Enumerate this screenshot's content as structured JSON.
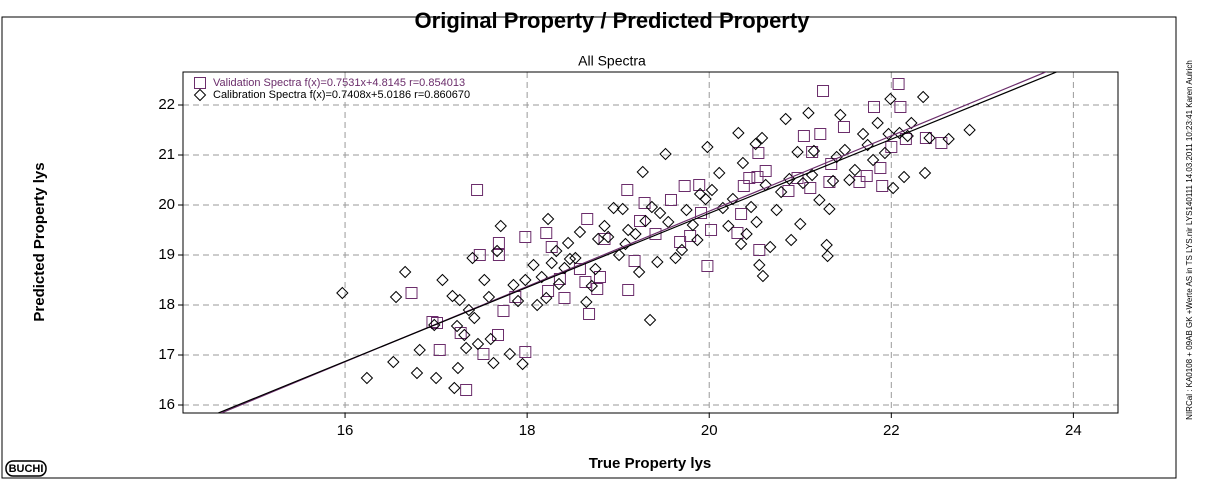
{
  "chart_data": {
    "type": "scatter",
    "title": "Original Property / Predicted Property",
    "subtitle": "All Spectra",
    "x_label": "True Property lys",
    "y_label": "Predicted Property lys",
    "side_note": "NIRCal : KA0108 + 09AB GK +Werte AS in TS LYS.nir LYS140111 14.03.2011 10:23:41 Karen Aulrich",
    "logo": "BUCHI",
    "xlim": [
      14.22,
      24.49
    ],
    "ylim": [
      15.84,
      22.66
    ],
    "xticks": [
      16,
      18,
      20,
      22,
      24
    ],
    "yticks": [
      16,
      17,
      18,
      19,
      20,
      21,
      22
    ],
    "grid": true,
    "legend": "upper-left",
    "series": [
      {
        "name": "Validation Spectra f(x)=0.7531x+4.8145  r=0.854013",
        "color": "#6b2d6b",
        "marker": "square",
        "fit": {
          "slope": 0.7531,
          "intercept": 4.8145
        },
        "x": [
          17.45,
          17.69,
          17.69,
          17.98,
          16.73,
          17.01,
          16.96,
          17.04,
          17.33,
          17.27,
          17.52,
          17.68,
          17.74,
          17.87,
          17.98,
          18.23,
          18.27,
          18.41,
          18.58,
          18.77,
          18.36,
          18.64,
          18.68,
          18.8,
          18.85,
          19.1,
          19.11,
          19.18,
          19.24,
          19.29,
          19.41,
          19.58,
          19.68,
          19.73,
          19.79,
          19.89,
          19.91,
          19.98,
          20.02,
          20.31,
          20.35,
          20.38,
          20.44,
          20.53,
          20.54,
          20.55,
          20.62,
          20.87,
          20.97,
          21.04,
          21.13,
          21.22,
          21.25,
          21.11,
          21.32,
          21.34,
          21.48,
          21.65,
          21.73,
          21.81,
          21.9,
          21.88,
          22.0,
          22.1,
          22.08,
          22.16,
          22.38,
          22.55,
          17.48,
          18.21,
          18.66
        ],
        "values": [
          20.3,
          19.24,
          19.0,
          19.36,
          18.24,
          17.64,
          17.66,
          17.1,
          16.3,
          17.44,
          17.02,
          17.4,
          17.88,
          18.16,
          17.06,
          18.28,
          19.16,
          18.14,
          18.72,
          18.32,
          18.52,
          18.46,
          17.82,
          18.56,
          19.32,
          20.3,
          18.3,
          18.88,
          19.68,
          20.04,
          19.42,
          20.1,
          19.26,
          20.38,
          19.38,
          20.4,
          19.84,
          18.78,
          19.5,
          19.44,
          19.82,
          20.38,
          20.54,
          20.56,
          21.04,
          19.1,
          20.68,
          20.28,
          20.54,
          21.38,
          21.06,
          21.42,
          22.28,
          20.34,
          20.46,
          20.82,
          21.56,
          20.46,
          20.58,
          21.96,
          20.38,
          20.74,
          21.16,
          21.96,
          22.42,
          21.32,
          21.34,
          21.24,
          19.0,
          19.44,
          19.72
        ]
      },
      {
        "name": "Calibration Spectra f(x)=0.7408x+5.0186  r=0.860670",
        "color": "#000000",
        "marker": "diamond",
        "fit": {
          "slope": 0.7408,
          "intercept": 5.0186
        },
        "x": [
          15.97,
          16.24,
          16.53,
          16.56,
          16.66,
          16.79,
          16.82,
          17.0,
          17.07,
          16.98,
          17.18,
          17.23,
          17.24,
          17.2,
          17.26,
          17.31,
          17.33,
          17.36,
          17.4,
          17.42,
          17.46,
          17.53,
          17.58,
          17.6,
          17.63,
          17.67,
          17.71,
          17.81,
          17.85,
          17.9,
          17.95,
          17.98,
          18.07,
          18.11,
          18.16,
          18.21,
          18.23,
          18.27,
          18.32,
          18.35,
          18.41,
          18.45,
          18.47,
          18.53,
          18.58,
          18.65,
          18.71,
          18.75,
          18.78,
          18.85,
          18.89,
          18.95,
          19.01,
          19.05,
          19.08,
          19.11,
          19.19,
          19.23,
          19.27,
          19.3,
          19.35,
          19.37,
          19.43,
          19.46,
          19.52,
          19.55,
          19.63,
          19.7,
          19.75,
          19.82,
          19.87,
          19.9,
          19.96,
          19.98,
          20.03,
          20.11,
          20.15,
          20.21,
          20.26,
          20.32,
          20.35,
          20.37,
          20.41,
          20.46,
          20.51,
          20.52,
          20.55,
          20.58,
          20.59,
          20.62,
          20.67,
          20.74,
          20.79,
          20.84,
          20.88,
          20.9,
          20.97,
          21.0,
          21.03,
          21.09,
          21.13,
          21.15,
          21.21,
          21.29,
          21.3,
          21.32,
          21.36,
          21.4,
          21.44,
          21.49,
          21.54,
          21.6,
          21.69,
          21.74,
          21.8,
          21.85,
          21.93,
          21.97,
          21.99,
          22.02,
          22.09,
          22.14,
          22.18,
          22.22,
          22.35,
          22.37,
          22.42,
          22.86,
          22.63
        ],
        "values": [
          18.24,
          16.54,
          16.86,
          18.16,
          18.66,
          16.64,
          17.1,
          16.54,
          18.5,
          17.6,
          18.18,
          17.58,
          16.74,
          16.34,
          18.1,
          17.4,
          17.14,
          17.9,
          18.94,
          17.74,
          17.22,
          18.5,
          18.16,
          17.32,
          16.84,
          19.08,
          19.58,
          17.02,
          18.4,
          18.08,
          16.82,
          18.5,
          18.8,
          18.0,
          18.56,
          18.14,
          19.72,
          18.84,
          19.08,
          18.42,
          18.74,
          19.24,
          18.92,
          18.94,
          19.46,
          18.06,
          18.38,
          18.72,
          19.32,
          19.58,
          19.36,
          19.94,
          19.0,
          19.92,
          19.22,
          19.5,
          19.42,
          18.66,
          20.66,
          19.68,
          17.7,
          19.96,
          18.86,
          19.84,
          21.02,
          19.66,
          18.94,
          19.1,
          19.9,
          19.6,
          19.3,
          20.22,
          20.12,
          21.16,
          20.3,
          20.64,
          19.94,
          19.58,
          20.12,
          21.44,
          19.22,
          20.84,
          19.42,
          19.96,
          21.22,
          19.66,
          18.8,
          21.34,
          18.58,
          20.4,
          19.16,
          19.9,
          20.26,
          21.72,
          20.52,
          19.3,
          21.06,
          19.62,
          20.44,
          21.84,
          20.6,
          21.08,
          20.1,
          19.2,
          18.98,
          19.92,
          20.48,
          20.96,
          21.8,
          21.1,
          20.5,
          20.7,
          21.42,
          21.2,
          20.9,
          21.64,
          21.04,
          21.42,
          22.12,
          20.34,
          21.44,
          20.56,
          21.38,
          21.64,
          22.16,
          20.64,
          21.34,
          21.5,
          21.32
        ]
      }
    ]
  }
}
